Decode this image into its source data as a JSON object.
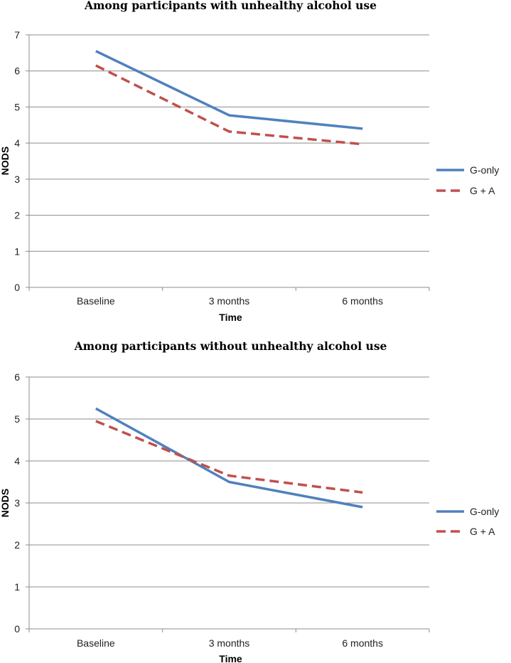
{
  "chart_data": [
    {
      "type": "line",
      "title": "Among participants with unhealthy alcohol use",
      "xlabel": "Time",
      "ylabel": "NODS",
      "categories": [
        "Baseline",
        "3 months",
        "6 months"
      ],
      "ylim": [
        0,
        7
      ],
      "yticks": [
        "0",
        "1",
        "2",
        "3",
        "4",
        "5",
        "6",
        "7"
      ],
      "grid": true,
      "legend": "right",
      "series": [
        {
          "name": "G-only",
          "values": [
            6.55,
            4.77,
            4.4
          ],
          "color": "#4f81bd",
          "style": "solid"
        },
        {
          "name": "G + A",
          "values": [
            6.15,
            4.32,
            3.97
          ],
          "color": "#c0504d",
          "style": "dashed"
        }
      ]
    },
    {
      "type": "line",
      "title": "Among participants without unhealthy alcohol use",
      "xlabel": "Time",
      "ylabel": "NODS",
      "categories": [
        "Baseline",
        "3 months",
        "6 months"
      ],
      "ylim": [
        0,
        6
      ],
      "yticks": [
        "0",
        "1",
        "2",
        "3",
        "4",
        "5",
        "6"
      ],
      "grid": true,
      "legend": "right",
      "series": [
        {
          "name": "G-only",
          "values": [
            5.25,
            3.5,
            2.9
          ],
          "color": "#4f81bd",
          "style": "solid"
        },
        {
          "name": "G + A",
          "values": [
            4.95,
            3.65,
            3.25
          ],
          "color": "#c0504d",
          "style": "dashed"
        }
      ]
    }
  ]
}
